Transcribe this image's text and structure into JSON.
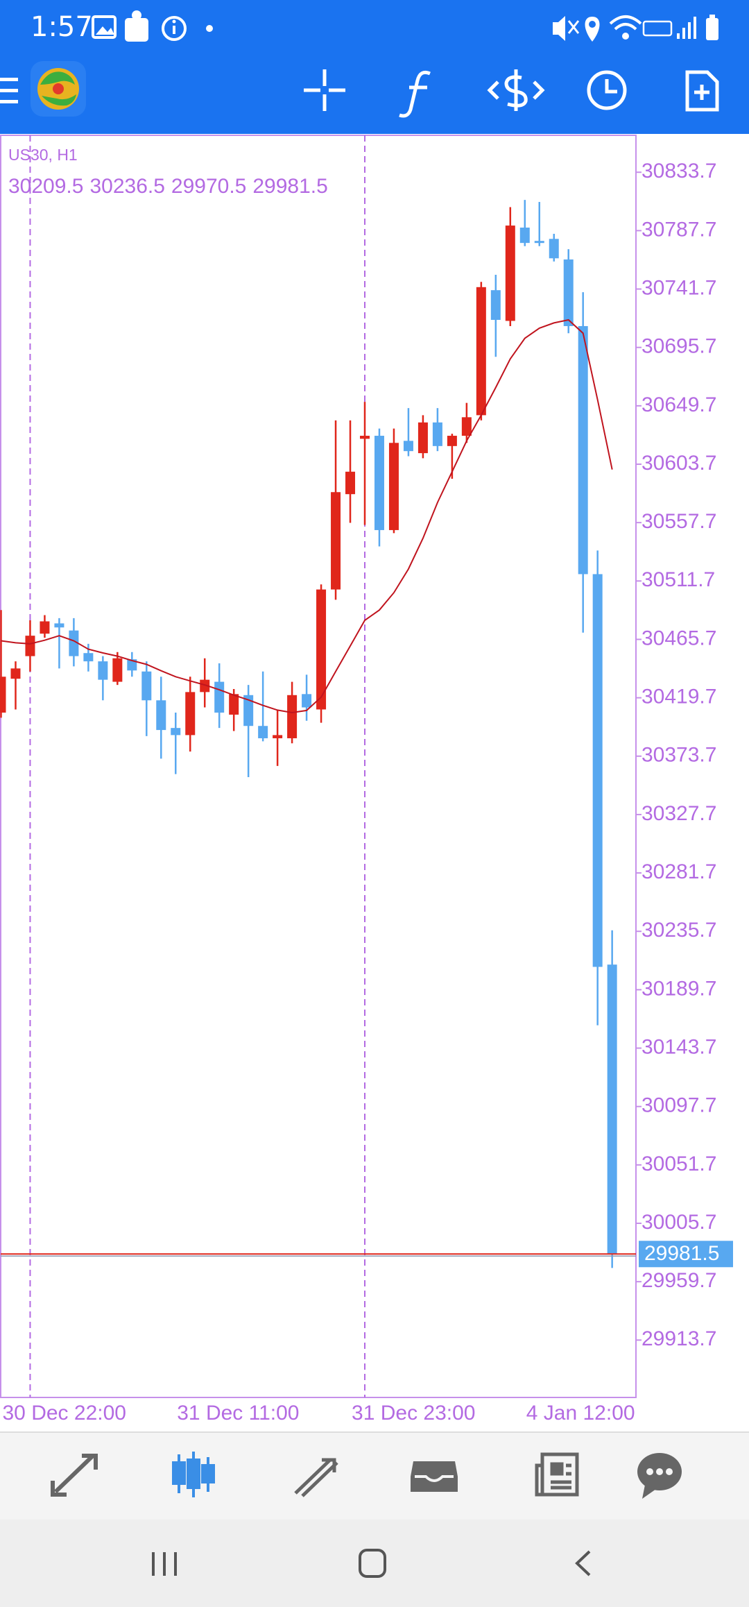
{
  "status_bar": {
    "time": "1:57"
  },
  "chart_data": {
    "type": "candlestick",
    "title": "US30, H1",
    "categories": [
      "30 Dec 22:00",
      null,
      null,
      null,
      null,
      null,
      null,
      null,
      null,
      null,
      null,
      null,
      "31 Dec 11:00",
      null,
      null,
      null,
      null,
      null,
      null,
      null,
      null,
      null,
      null,
      null,
      "31 Dec 23:00",
      null,
      null,
      null,
      null,
      null,
      null,
      null,
      null,
      null,
      null,
      null,
      "4 Jan 12:00",
      null,
      null,
      null,
      null,
      null,
      null
    ],
    "open": [
      30408.0,
      30434.7,
      30452.5,
      30470.2,
      30478.3,
      30472.7,
      30454.9,
      30448.4,
      30432.3,
      30450.0,
      30440.4,
      30417.7,
      30395.9,
      30390.3,
      30424.2,
      30432.3,
      30406.4,
      30421.8,
      30397.5,
      30387.8,
      30387.8,
      30422.6,
      30410.5,
      30505.0,
      30580.1,
      30623.7,
      30626.1,
      30551.8,
      30622.1,
      30612.4,
      30636.6,
      30618.0,
      30626.1,
      30642.3,
      30740.8,
      30716.6,
      30790.1,
      30779.6,
      30781.2,
      30765.0,
      30712.5,
      30517.1,
      30209.5
    ],
    "high": [
      30488.8,
      30448.4,
      30480.7,
      30484.8,
      30482.4,
      30482.4,
      30462.2,
      30452.5,
      30455.7,
      30455.7,
      30448.4,
      30436.3,
      30408.0,
      30436.3,
      30450.8,
      30446.8,
      30426.6,
      30429.8,
      30440.4,
      30409.7,
      30432.3,
      30437.9,
      30509.0,
      30638.2,
      30638.2,
      30652.8,
      30631.8,
      30631.8,
      30647.9,
      30642.3,
      30647.9,
      30627.7,
      30652.0,
      30747.3,
      30752.9,
      30806.2,
      30811.9,
      30810.3,
      30785.2,
      30773.1,
      30739.2,
      30535.7,
      30236.5
    ],
    "low": [
      30404.0,
      30410.5,
      30440.4,
      30467.0,
      30442.8,
      30444.4,
      30440.4,
      30417.7,
      30429.8,
      30436.3,
      30389.5,
      30371.7,
      30359.6,
      30377.3,
      30412.1,
      30395.9,
      30393.5,
      30357.2,
      30385.4,
      30366.0,
      30383.8,
      30401.6,
      30400.0,
      30496.9,
      30557.5,
      30555.9,
      30538.9,
      30549.4,
      30610.0,
      30608.4,
      30614.0,
      30592.2,
      30620.5,
      30638.2,
      30688.3,
      30712.5,
      30775.5,
      30775.5,
      30763.4,
      30706.9,
      30471.0,
      30161.7,
      29970.5
    ],
    "close": [
      30436.3,
      30442.8,
      30468.6,
      30479.9,
      30475.1,
      30452.5,
      30448.4,
      30433.9,
      30450.8,
      30441.2,
      30417.7,
      30394.3,
      30390.3,
      30424.2,
      30433.9,
      30408.0,
      30422.6,
      30397.5,
      30387.8,
      30390.3,
      30421.8,
      30412.1,
      30505.0,
      30581.7,
      30597.8,
      30626.1,
      30551.8,
      30620.5,
      30614.0,
      30636.6,
      30618.0,
      30626.1,
      30640.7,
      30743.2,
      30717.4,
      30791.7,
      30778.0,
      30778.8,
      30765.9,
      30712.5,
      30517.1,
      30207.7,
      29981.5
    ],
    "up_color": "#e0261b",
    "down_color": "#58a8f0",
    "moving_average": {
      "color": "#c0141e",
      "values": [
        30464.6,
        30463.0,
        30462.2,
        30465.0,
        30468.6,
        30464.6,
        30458.0,
        30455.0,
        30452.5,
        30449.0,
        30446.0,
        30441.0,
        30436.3,
        30433.0,
        30429.8,
        30426.0,
        30421.8,
        30418.0,
        30413.7,
        30410.0,
        30408.0,
        30409.7,
        30420.2,
        30440.4,
        30460.5,
        30480.7,
        30488.8,
        30502.5,
        30521.1,
        30545.4,
        30573.6,
        30597.8,
        30622.1,
        30642.3,
        30664.1,
        30686.7,
        30702.9,
        30710.9,
        30715.0,
        30717.4,
        30706.9,
        30654.4,
        30599.5
      ]
    },
    "ylim": [
      29868.5,
      30862.8
    ],
    "yticks": [
      30833.7,
      30787.7,
      30741.7,
      30695.7,
      30649.7,
      30603.7,
      30557.7,
      30511.7,
      30465.7,
      30419.7,
      30373.7,
      30327.7,
      30281.7,
      30235.7,
      30189.7,
      30143.7,
      30097.7,
      30051.7,
      30005.7,
      29959.7,
      29913.7
    ],
    "grid": false
  }
}
